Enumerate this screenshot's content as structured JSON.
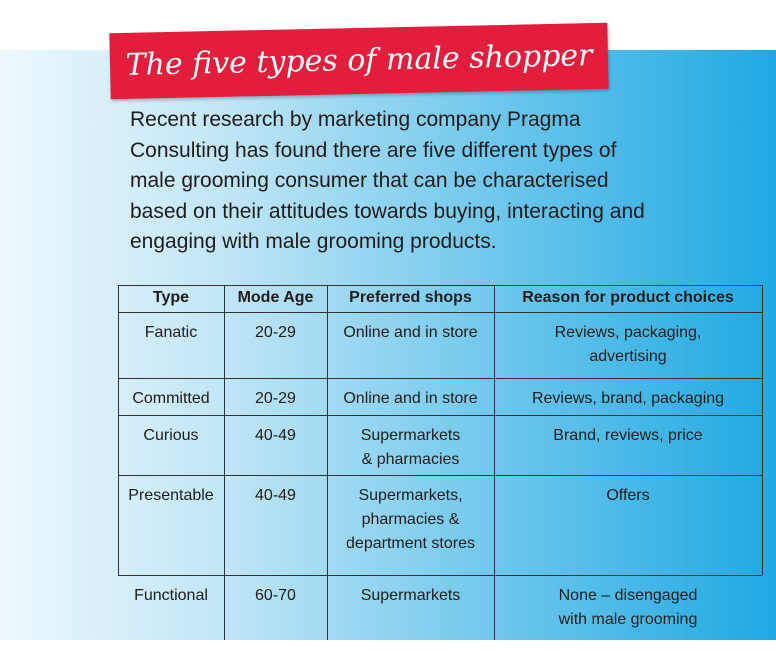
{
  "header": {
    "title": "The five types of male shopper"
  },
  "intro": [
    "Recent research by marketing company Pragma",
    "Consulting has found there are five different types of",
    "male grooming consumer that can be characterised",
    "based on their attitudes towards buying, interacting and",
    "engaging with male grooming products."
  ],
  "table": {
    "columns": [
      "Type",
      "Mode Age",
      "Preferred shops",
      "Reason for product choices"
    ],
    "rows": [
      [
        [
          "Fanatic"
        ],
        [
          "20-29"
        ],
        [
          "Online and in store"
        ],
        [
          "Reviews, packaging,",
          "advertising"
        ]
      ],
      [
        [
          "Committed"
        ],
        [
          "20-29"
        ],
        [
          "Online and in store"
        ],
        [
          "Reviews, brand, packaging"
        ]
      ],
      [
        [
          "Curious"
        ],
        [
          "40-49"
        ],
        [
          "Supermarkets",
          "& pharmacies"
        ],
        [
          "Brand, reviews, price"
        ]
      ],
      [
        [
          "Presentable"
        ],
        [
          "40-49"
        ],
        [
          "Supermarkets,",
          "pharmacies &",
          "department stores"
        ],
        [
          "Offers"
        ]
      ],
      [
        [
          "Functional"
        ],
        [
          "60-70"
        ],
        [
          "Supermarkets"
        ],
        [
          "None – disengaged",
          "with male grooming"
        ]
      ]
    ]
  }
}
